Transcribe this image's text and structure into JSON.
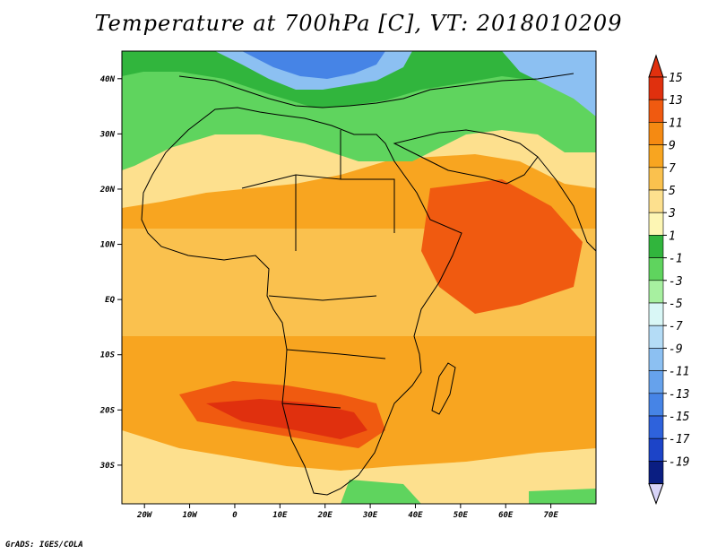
{
  "title": "Temperature at 700hPa [C], VT: 2018010209",
  "footer": "GrADS: IGES/COLA",
  "map": {
    "lon_range": [
      -25,
      80
    ],
    "lat_range": [
      -37,
      45
    ],
    "lon_ticks": [
      "20W",
      "10W",
      "0",
      "10E",
      "20E",
      "30E",
      "40E",
      "50E",
      "60E",
      "70E"
    ],
    "lat_ticks": [
      "40N",
      "30N",
      "20N",
      "10N",
      "EQ",
      "10S",
      "20S",
      "30S"
    ],
    "colorbar": {
      "labels": [
        "15",
        "13",
        "11",
        "9",
        "7",
        "5",
        "3",
        "1",
        "-1",
        "-3",
        "-5",
        "-7",
        "-9",
        "-11",
        "-13",
        "-15",
        "-17",
        "-19"
      ],
      "colors": [
        "#e0300e",
        "#f05a10",
        "#f58a12",
        "#f8a520",
        "#fac14e",
        "#fde08e",
        "#fdf6b4",
        "#31b53d",
        "#5fd45e",
        "#a7f0a0",
        "#d9f7f6",
        "#b4dcf6",
        "#8cc0f2",
        "#66a2ec",
        "#4684e6",
        "#2e62dc",
        "#1c44c8",
        "#0a1e82"
      ]
    },
    "regions": [
      {
        "name": "mediterranean-cold-band",
        "value": -9,
        "color": "#66a2ec"
      },
      {
        "name": "north-africa-green-band",
        "value": 0,
        "color": "#5fd45e"
      },
      {
        "name": "sahel-yellow-band",
        "value": 4,
        "color": "#fde08e"
      },
      {
        "name": "tropical-orange-belt",
        "value": 9,
        "color": "#f8a520"
      },
      {
        "name": "arabian-sea-warm-zone",
        "value": 12,
        "color": "#f05a10"
      },
      {
        "name": "southern-africa-warm-zone",
        "value": 13,
        "color": "#e0300e"
      }
    ]
  }
}
